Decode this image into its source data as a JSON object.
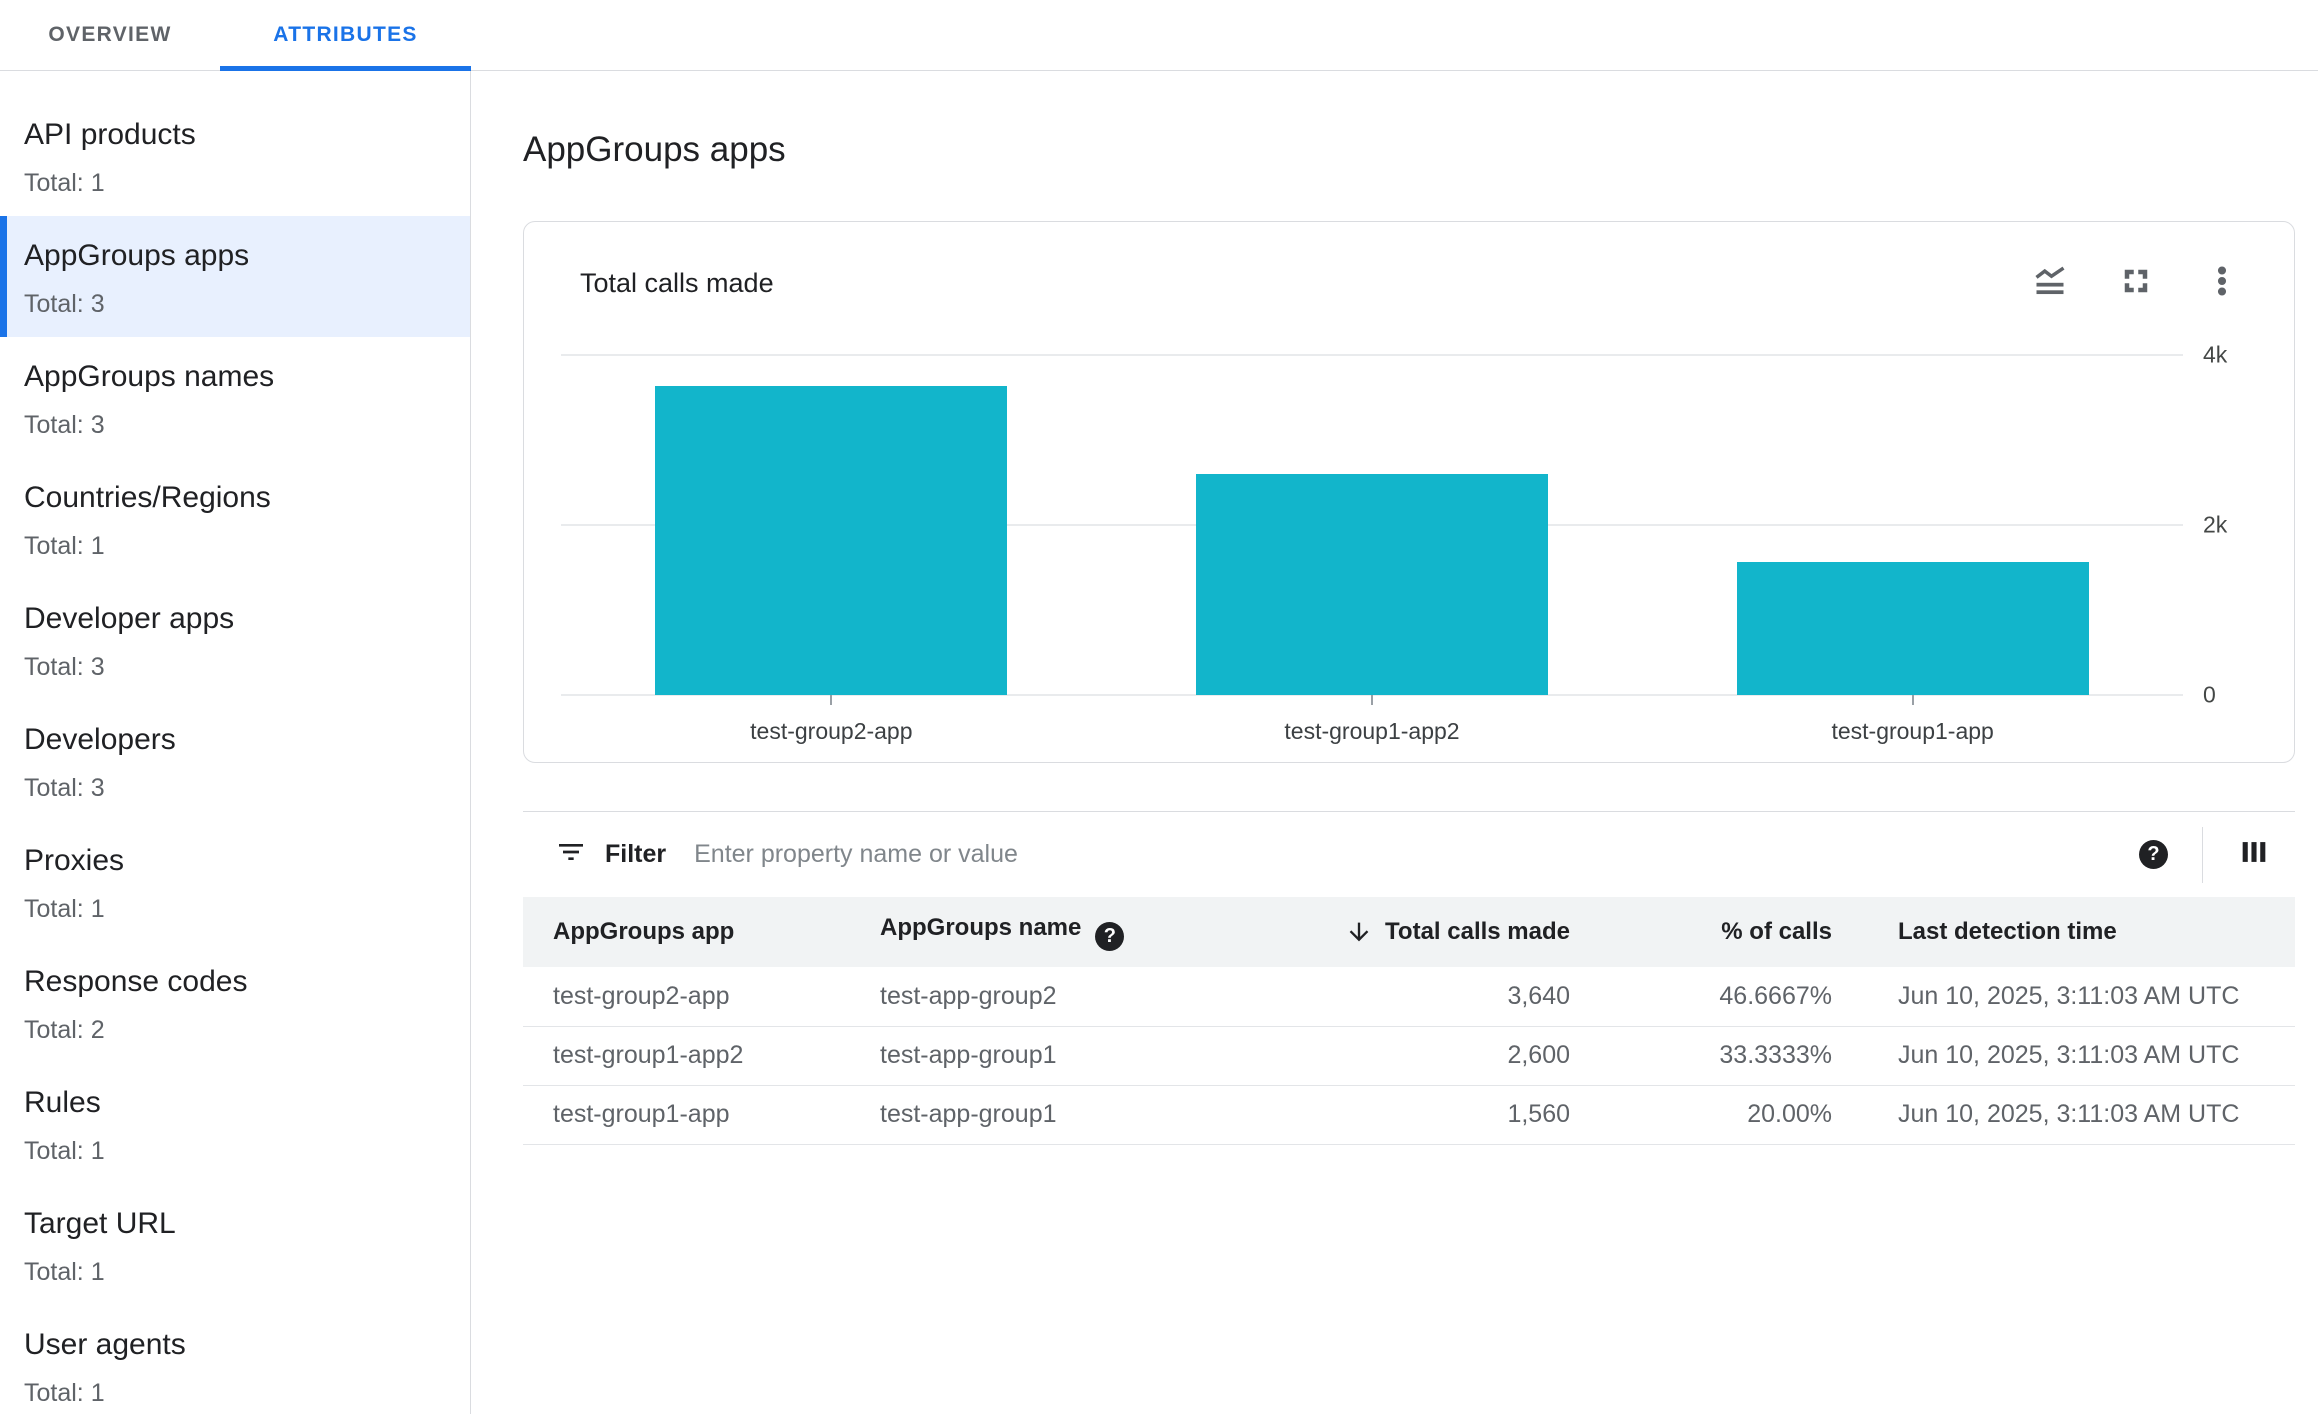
{
  "colors": {
    "accent_blue": "#1a73e8",
    "selected_bg": "#e8f0fe",
    "bar_teal": "#12b5cb"
  },
  "tabs": [
    {
      "label": "OVERVIEW",
      "active": false
    },
    {
      "label": "ATTRIBUTES",
      "active": true
    }
  ],
  "sidebar": {
    "items": [
      {
        "label": "API products",
        "total": "Total: 1",
        "selected": false
      },
      {
        "label": "AppGroups apps",
        "total": "Total: 3",
        "selected": true
      },
      {
        "label": "AppGroups names",
        "total": "Total: 3",
        "selected": false
      },
      {
        "label": "Countries/Regions",
        "total": "Total: 1",
        "selected": false
      },
      {
        "label": "Developer apps",
        "total": "Total: 3",
        "selected": false
      },
      {
        "label": "Developers",
        "total": "Total: 3",
        "selected": false
      },
      {
        "label": "Proxies",
        "total": "Total: 1",
        "selected": false
      },
      {
        "label": "Response codes",
        "total": "Total: 2",
        "selected": false
      },
      {
        "label": "Rules",
        "total": "Total: 1",
        "selected": false
      },
      {
        "label": "Target URL",
        "total": "Total: 1",
        "selected": false
      },
      {
        "label": "User agents",
        "total": "Total: 1",
        "selected": false
      }
    ]
  },
  "main": {
    "title": "AppGroups apps",
    "chart_card": {
      "title": "Total calls made"
    },
    "filter": {
      "label": "Filter",
      "placeholder": "Enter property name or value"
    },
    "table": {
      "columns": [
        "AppGroups app",
        "AppGroups name",
        "Total calls made",
        "% of calls",
        "Last detection time"
      ],
      "sorted_column": "Total calls made",
      "sort_direction": "desc",
      "rows": [
        {
          "app": "test-group2-app",
          "name": "test-app-group2",
          "calls": "3,640",
          "pct": "46.6667%",
          "time": "Jun 10, 2025, 3:11:03 AM UTC"
        },
        {
          "app": "test-group1-app2",
          "name": "test-app-group1",
          "calls": "2,600",
          "pct": "33.3333%",
          "time": "Jun 10, 2025, 3:11:03 AM UTC"
        },
        {
          "app": "test-group1-app",
          "name": "test-app-group1",
          "calls": "1,560",
          "pct": "20.00%",
          "time": "Jun 10, 2025, 3:11:03 AM UTC"
        }
      ]
    }
  },
  "icons": {
    "help_glyph": "?"
  },
  "chart_data": {
    "type": "bar",
    "title": "Total calls made",
    "categories": [
      "test-group2-app",
      "test-group1-app2",
      "test-group1-app"
    ],
    "values": [
      3640,
      2600,
      1560
    ],
    "ylim": [
      0,
      4000
    ],
    "yticks": [
      {
        "value": 0,
        "label": "0"
      },
      {
        "value": 2000,
        "label": "2k"
      },
      {
        "value": 4000,
        "label": "4k"
      }
    ],
    "y_axis_side": "right",
    "grid": "horizontal",
    "legend": "none",
    "bar_color": "#12b5cb"
  }
}
